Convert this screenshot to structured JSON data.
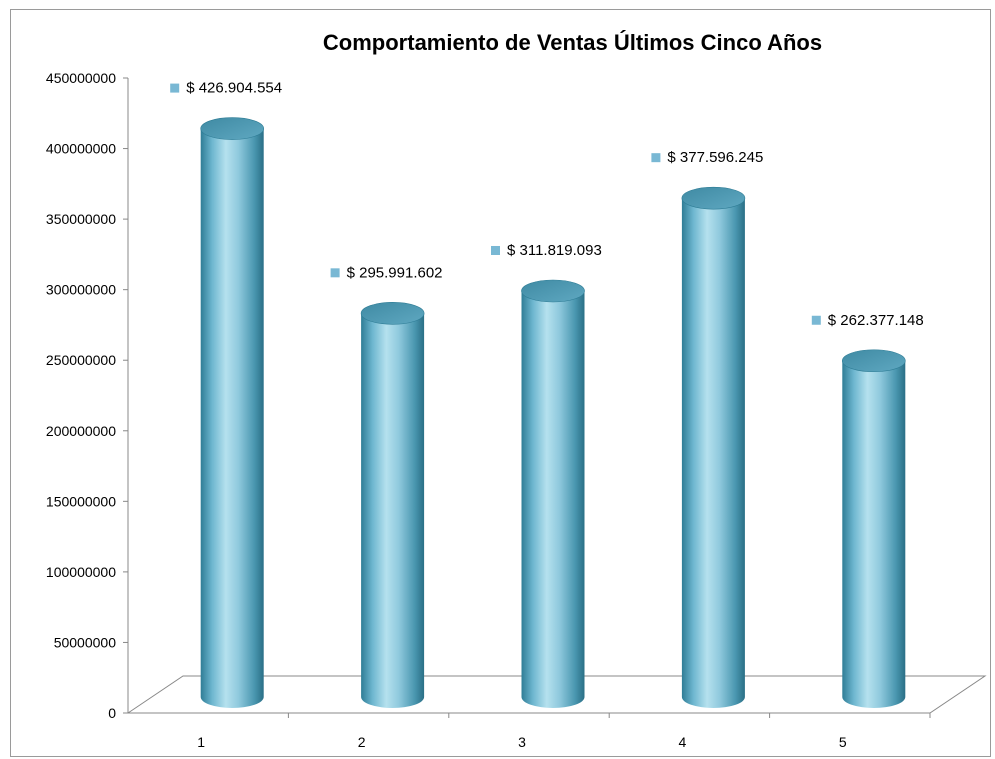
{
  "chart_data": {
    "type": "bar",
    "title": "Comportamiento  de Ventas Últimos Cinco Años",
    "categories": [
      "1",
      "2",
      "3",
      "4",
      "5"
    ],
    "values": [
      426904554,
      295991602,
      311819093,
      377596245,
      262377148
    ],
    "data_labels": [
      "$ 426.904.554",
      "$ 295.991.602",
      "$ 311.819.093",
      "$ 377.596.245",
      "$ 262.377.148"
    ],
    "y_ticks": [
      "0",
      "50000000",
      "100000000",
      "150000000",
      "200000000",
      "250000000",
      "300000000",
      "350000000",
      "400000000",
      "450000000"
    ],
    "ylim": [
      0,
      450000000
    ],
    "grid": false,
    "style": "3d-cylinder",
    "colors": {
      "bar": "#8fc9dd",
      "bar_dark": "#2f7d96",
      "marker": "#79b8d4"
    }
  }
}
